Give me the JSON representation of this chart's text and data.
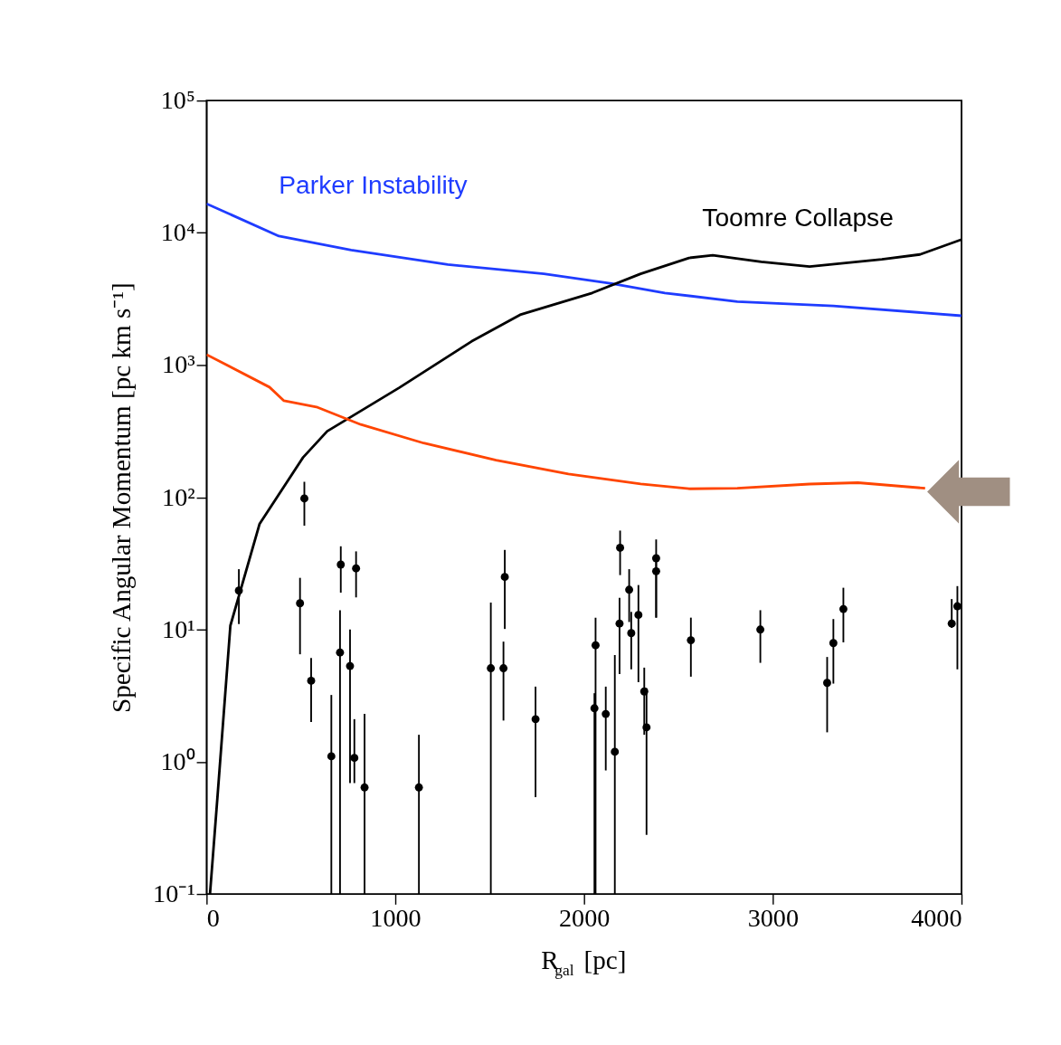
{
  "chart_data": {
    "type": "line",
    "xlabel": "R$_{gal}$ [pc]",
    "ylabel": "Specific Angular Momentum [pc km s⁻¹]",
    "xlim": [
      0,
      4000
    ],
    "xticks": [
      0,
      1000,
      2000,
      3000,
      4000
    ],
    "ylim": [
      0.1,
      100000
    ],
    "log": "y",
    "yticks": [
      {
        "value": 0.1,
        "label": "10⁻¹"
      },
      {
        "value": 1,
        "label": "10⁰"
      },
      {
        "value": 10,
        "label": "10¹"
      },
      {
        "value": 100,
        "label": "10²"
      },
      {
        "value": 1000,
        "label": "10³"
      },
      {
        "value": 10000,
        "label": "10⁴"
      },
      {
        "value": 100000,
        "label": "10⁵"
      }
    ],
    "grid": false,
    "series": [
      {
        "name": "Parker Instability",
        "color": "#1f3cff",
        "x": [
          0,
          383,
          766,
          1278,
          1787,
          2146,
          2428,
          2812,
          3321,
          4000
        ],
        "values": [
          16600,
          9440,
          7410,
          5750,
          4900,
          4140,
          3510,
          3020,
          2800,
          2360
        ]
      },
      {
        "name": "Toomre Collapse",
        "color": "#000000",
        "x": [
          18,
          58,
          126,
          281,
          511,
          639,
          1022,
          1404,
          1661,
          2043,
          2300,
          2556,
          2682,
          2939,
          3195,
          3578,
          3780,
          4000
        ],
        "values": [
          0.1,
          0.55,
          10.7,
          63,
          200,
          316,
          676,
          1510,
          2400,
          3510,
          4900,
          6460,
          6760,
          6030,
          5560,
          6310,
          6860,
          8900
        ]
      },
      {
        "color": "#ff4500",
        "x": [
          0,
          333,
          410,
          588,
          817,
          1150,
          1534,
          1917,
          2300,
          2556,
          2812,
          3195,
          3451,
          3807
        ],
        "values": [
          1200,
          681,
          537,
          479,
          355,
          257,
          191,
          150,
          126,
          116,
          117,
          126,
          129,
          117
        ]
      },
      {
        "type": "scatter",
        "color": "#000000",
        "marker": "circle",
        "x": [
          171,
          518,
          495,
          554,
          711,
          707,
          760,
          792,
          661,
          783,
          837,
          1125,
          1506,
          1573,
          1580,
          1743,
          2061,
          2055,
          2115,
          2163,
          2191,
          2188,
          2239,
          2250,
          2288,
          2319,
          2331,
          2382,
          2382,
          2566,
          2934,
          3288,
          3321,
          3374,
          3948,
          3978
        ],
        "values": [
          19.7,
          98,
          15.8,
          4.1,
          31,
          6.7,
          5.3,
          29,
          1.1,
          1.07,
          0.64,
          0.64,
          5.1,
          5.1,
          25,
          2.1,
          7.6,
          2.54,
          2.3,
          1.19,
          41.5,
          11.1,
          20,
          9.4,
          12.9,
          3.4,
          1.82,
          34.6,
          27.6,
          8.3,
          10,
          3.95,
          7.9,
          14.3,
          11.1,
          15
        ],
        "errors": [
          [
            11,
            28.6
          ],
          [
            61,
            131
          ],
          [
            6.5,
            24.6
          ],
          [
            2.0,
            6.1
          ],
          [
            19,
            42.6
          ],
          [
            0.1,
            14
          ],
          [
            0.69,
            10
          ],
          [
            17.5,
            39
          ],
          [
            0.1,
            3.2
          ],
          [
            0.69,
            2.1
          ],
          [
            0.1,
            2.3
          ],
          [
            0.1,
            1.6
          ],
          [
            0.1,
            16
          ],
          [
            2.05,
            8.1
          ],
          [
            10.1,
            40
          ],
          [
            0.54,
            3.7
          ],
          [
            0.1,
            12.3
          ],
          [
            0.1,
            3.3
          ],
          [
            0.86,
            3.7
          ],
          [
            0.1,
            6.4
          ],
          [
            25.8,
            56
          ],
          [
            4.6,
            17.4
          ],
          [
            11.4,
            28.6
          ],
          [
            5.0,
            13.6
          ],
          [
            4.0,
            21.7
          ],
          [
            1.6,
            5.15
          ],
          [
            0.28,
            3.6
          ],
          [
            12.3,
            48
          ],
          [
            12.3,
            34.6
          ],
          [
            4.4,
            12.3
          ],
          [
            5.6,
            14
          ],
          [
            1.67,
            6.2
          ],
          [
            3.9,
            12
          ],
          [
            8,
            20.7
          ],
          [
            10.3,
            17
          ],
          [
            5.0,
            21.3
          ]
        ]
      }
    ]
  }
}
